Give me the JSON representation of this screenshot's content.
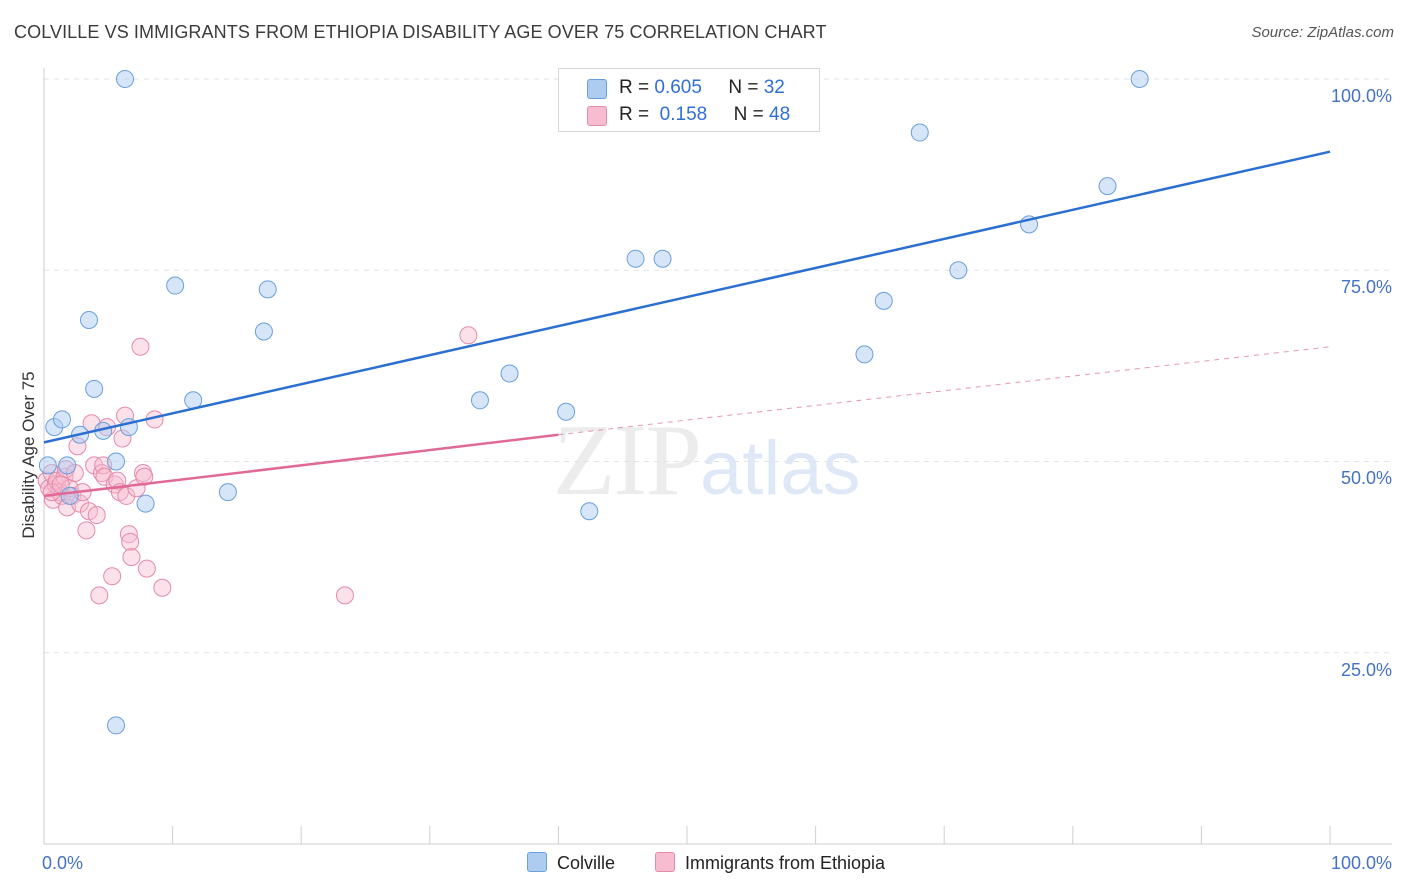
{
  "title": "COLVILLE VS IMMIGRANTS FROM ETHIOPIA DISABILITY AGE OVER 75 CORRELATION CHART",
  "source": "Source: ZipAtlas.com",
  "watermark": {
    "zip": "ZIP",
    "atlas": "atlas"
  },
  "legend": {
    "rows": [
      {
        "r_label": "R =",
        "r_value": "0.605",
        "n_label": "N =",
        "n_value": "32"
      },
      {
        "r_label": "R =",
        "r_value": "0.158",
        "n_label": "N =",
        "n_value": "48"
      }
    ]
  },
  "colors": {
    "blue_fill": "#aecbf0",
    "blue_stroke": "#6a9fdc",
    "blue_line": "#2a6fd1",
    "pink_fill": "#f7bcd0",
    "pink_stroke": "#e58aab",
    "pink_line": "#e06a95",
    "grid": "#e3e3e3",
    "tick_text": "#4472c4"
  },
  "chart_data": {
    "type": "scatter",
    "title": "COLVILLE VS IMMIGRANTS FROM ETHIOPIA DISABILITY AGE OVER 75 CORRELATION CHART",
    "xlabel": "",
    "ylabel": "Disability Age Over 75",
    "xlim": [
      0,
      100
    ],
    "ylim": [
      0,
      100
    ],
    "x_tick_labels": [
      "0.0%",
      "100.0%"
    ],
    "y_tick_labels": [
      "100.0%",
      "75.0%",
      "50.0%",
      "25.0%"
    ],
    "y_ticks": [
      100,
      75,
      50,
      25
    ],
    "series": [
      {
        "name": "Colville",
        "color": "blue",
        "points": [
          [
            0.3,
            49.5
          ],
          [
            0.8,
            54.5
          ],
          [
            1.4,
            55.5
          ],
          [
            1.8,
            49.5
          ],
          [
            2.0,
            45.5
          ],
          [
            2.8,
            53.5
          ],
          [
            3.5,
            68.5
          ],
          [
            3.9,
            59.5
          ],
          [
            4.6,
            54.0
          ],
          [
            5.6,
            50.0
          ],
          [
            5.6,
            15.5
          ],
          [
            6.3,
            100.0
          ],
          [
            6.6,
            54.5
          ],
          [
            7.9,
            44.5
          ],
          [
            10.2,
            73.0
          ],
          [
            11.6,
            58.0
          ],
          [
            14.3,
            46.0
          ],
          [
            17.1,
            67.0
          ],
          [
            17.4,
            72.5
          ],
          [
            33.9,
            58.0
          ],
          [
            36.2,
            61.5
          ],
          [
            40.6,
            56.5
          ],
          [
            42.4,
            43.5
          ],
          [
            46.0,
            76.5
          ],
          [
            48.1,
            76.5
          ],
          [
            63.8,
            64.0
          ],
          [
            65.3,
            71.0
          ],
          [
            68.1,
            93.0
          ],
          [
            71.1,
            75.0
          ],
          [
            76.6,
            81.0
          ],
          [
            82.7,
            86.0
          ],
          [
            85.2,
            100.0
          ]
        ],
        "trend": {
          "x": [
            0,
            100
          ],
          "y": [
            52.5,
            90.5
          ]
        }
      },
      {
        "name": "Immigrants from Ethiopia",
        "color": "pink",
        "points": [
          [
            0.2,
            47.5
          ],
          [
            0.4,
            46.5
          ],
          [
            0.6,
            48.5
          ],
          [
            0.7,
            45.0
          ],
          [
            0.9,
            47.0
          ],
          [
            1.0,
            47.5
          ],
          [
            1.2,
            46.0
          ],
          [
            1.4,
            45.5
          ],
          [
            1.6,
            48.0
          ],
          [
            1.7,
            49.0
          ],
          [
            1.8,
            44.0
          ],
          [
            2.0,
            46.5
          ],
          [
            2.2,
            45.5
          ],
          [
            2.4,
            48.5
          ],
          [
            2.6,
            52.0
          ],
          [
            2.8,
            44.5
          ],
          [
            3.0,
            46.0
          ],
          [
            3.3,
            41.0
          ],
          [
            3.5,
            43.5
          ],
          [
            3.7,
            55.0
          ],
          [
            3.9,
            49.5
          ],
          [
            4.1,
            43.0
          ],
          [
            4.3,
            32.5
          ],
          [
            4.5,
            48.5
          ],
          [
            4.6,
            49.5
          ],
          [
            4.7,
            48.0
          ],
          [
            4.9,
            54.5
          ],
          [
            5.3,
            35.0
          ],
          [
            5.5,
            47.0
          ],
          [
            5.7,
            47.5
          ],
          [
            5.9,
            46.0
          ],
          [
            6.1,
            53.0
          ],
          [
            6.3,
            56.0
          ],
          [
            6.4,
            45.5
          ],
          [
            6.6,
            40.5
          ],
          [
            6.7,
            39.5
          ],
          [
            6.8,
            37.5
          ],
          [
            7.2,
            46.5
          ],
          [
            7.5,
            65.0
          ],
          [
            7.7,
            48.5
          ],
          [
            7.8,
            48.0
          ],
          [
            8.0,
            36.0
          ],
          [
            8.6,
            55.5
          ],
          [
            9.2,
            33.5
          ],
          [
            23.4,
            32.5
          ],
          [
            33.0,
            66.5
          ],
          [
            0.6,
            46.0
          ],
          [
            1.3,
            47.0
          ]
        ],
        "trend": {
          "x": [
            0,
            40
          ],
          "y": [
            45.5,
            53.5
          ]
        },
        "trend_extended": {
          "x": [
            40,
            100
          ],
          "y": [
            53.5,
            65.0
          ]
        }
      }
    ]
  },
  "bottom_legend": [
    "Colville",
    "Immigrants from Ethiopia"
  ]
}
